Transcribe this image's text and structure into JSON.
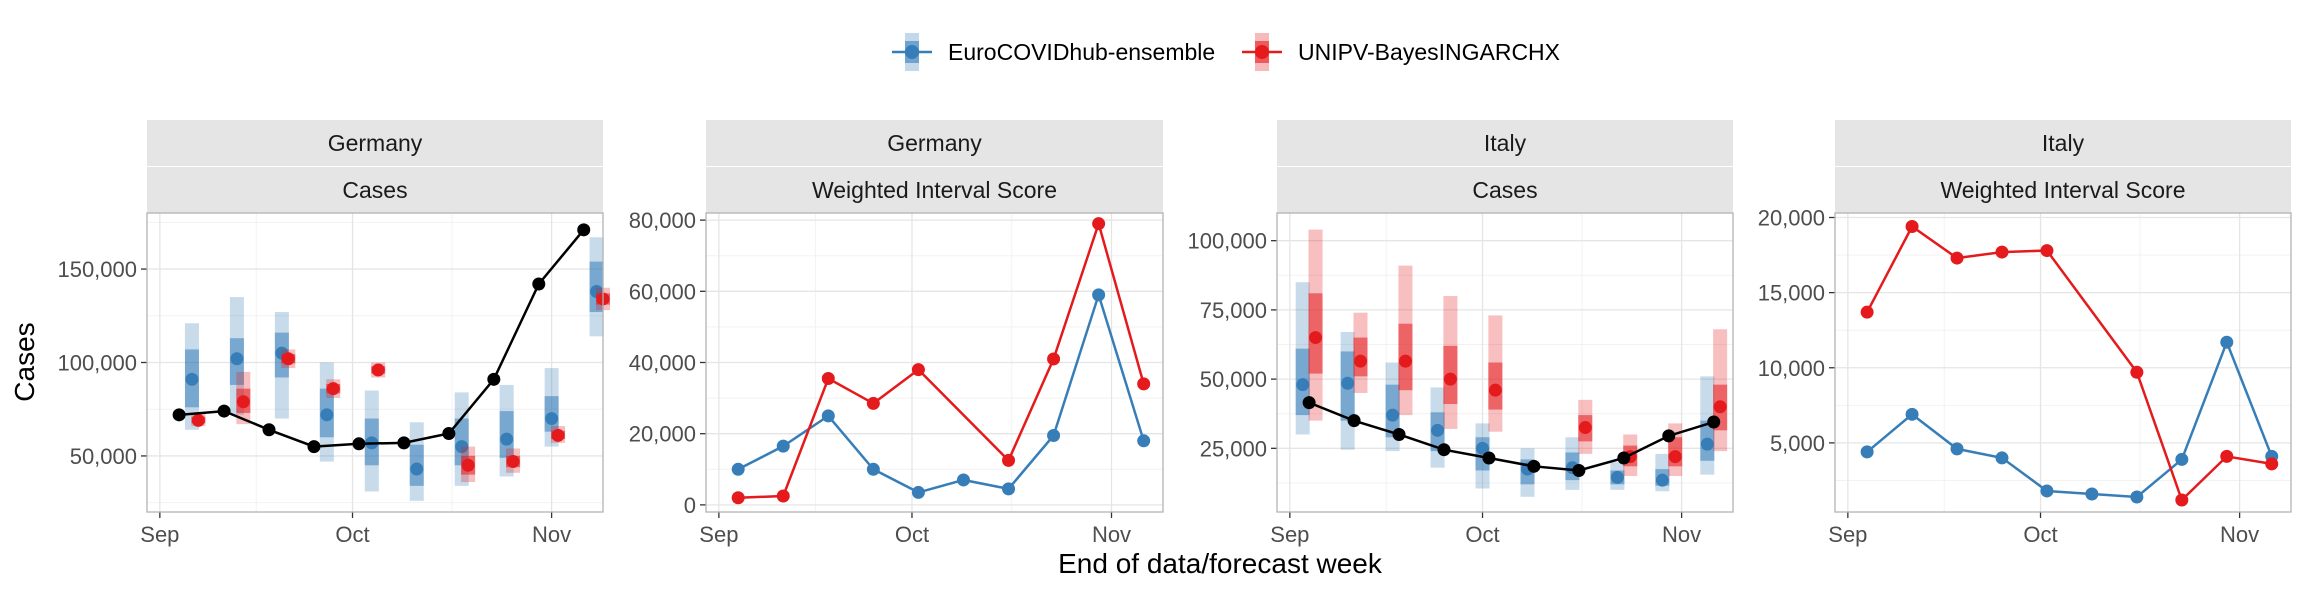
{
  "legend": {
    "position": "top",
    "entries": [
      {
        "label": "EuroCOVIDhub-ensemble",
        "color": "#377EB8"
      },
      {
        "label": "UNIPV-BayesINGARCHX",
        "color": "#E41A1C"
      }
    ]
  },
  "x_axis_title": "End of data/forecast week",
  "y_axis_title": "Cases",
  "observed_color": "#000000",
  "chart_data": [
    {
      "type": "line",
      "strip_top": "Germany",
      "strip_bottom": "Cases",
      "xlabel": "End of data/forecast week",
      "ylabel": "Cases",
      "grid": true,
      "x_ticks": [
        {
          "label": "Sep",
          "x": "2021-09-01"
        },
        {
          "label": "Oct",
          "x": "2021-10-01"
        },
        {
          "label": "Nov",
          "x": "2021-11-01"
        }
      ],
      "xlim": [
        "2021-08-30",
        "2021-11-09"
      ],
      "ylim": [
        20000,
        180000
      ],
      "y_ticks": [
        {
          "value": 50000,
          "label": "50,000"
        },
        {
          "value": 100000,
          "label": "100,000"
        },
        {
          "value": 150000,
          "label": "150,000"
        }
      ],
      "observed": {
        "x": [
          "2021-09-04",
          "2021-09-11",
          "2021-09-18",
          "2021-09-25",
          "2021-10-02",
          "2021-10-09",
          "2021-10-16",
          "2021-10-23",
          "2021-10-30",
          "2021-11-06"
        ],
        "values": [
          72000,
          74000,
          64000,
          55000,
          56500,
          57000,
          62000,
          91000,
          142000,
          171000
        ]
      },
      "forecasts": [
        {
          "model": "EuroCOVIDhub-ensemble",
          "x": [
            "2021-09-06",
            "2021-09-13",
            "2021-09-20",
            "2021-09-27",
            "2021-10-04",
            "2021-10-11",
            "2021-10-18",
            "2021-10-25",
            "2021-11-01",
            "2021-11-08"
          ],
          "median": [
            91000,
            102000,
            105000,
            72000,
            57000,
            43000,
            55000,
            59000,
            70000,
            138000
          ],
          "lower_90": [
            64000,
            72000,
            70000,
            47000,
            31000,
            26000,
            34000,
            39000,
            55000,
            114000
          ],
          "upper_90": [
            121000,
            135000,
            127000,
            100000,
            85000,
            68000,
            84000,
            88000,
            97000,
            167000
          ],
          "lower_50": [
            76000,
            88000,
            92000,
            60000,
            45000,
            34000,
            45000,
            49000,
            63000,
            127000
          ],
          "upper_50": [
            107000,
            113000,
            116000,
            86000,
            70000,
            56000,
            70000,
            74000,
            82000,
            154000
          ]
        },
        {
          "model": "UNIPV-BayesINGARCHX",
          "x": [
            "2021-09-07",
            "2021-09-14",
            "2021-09-21",
            "2021-09-28",
            "2021-10-05",
            "2021-10-12",
            "2021-10-19",
            "2021-10-26",
            "2021-11-02",
            "2021-11-09"
          ],
          "median": [
            69000,
            79000,
            102000,
            86000,
            96000,
            null,
            45000,
            47000,
            61000,
            134000
          ],
          "lower_90": [
            66000,
            67000,
            97000,
            81000,
            92000,
            null,
            36000,
            41000,
            57000,
            128000
          ],
          "upper_90": [
            73000,
            95000,
            107000,
            91000,
            100000,
            null,
            55000,
            54000,
            66000,
            140000
          ],
          "lower_50": [
            67500,
            73000,
            99500,
            83500,
            94000,
            null,
            40000,
            44000,
            59000,
            131000
          ],
          "upper_50": [
            71000,
            86000,
            104500,
            88500,
            98000,
            null,
            50000,
            50000,
            63500,
            137000
          ]
        }
      ]
    },
    {
      "type": "line",
      "strip_top": "Germany",
      "strip_bottom": "Weighted Interval Score",
      "xlabel": "End of data/forecast week",
      "ylabel": "",
      "grid": true,
      "x_ticks": [
        {
          "label": "Sep",
          "x": "2021-09-01"
        },
        {
          "label": "Oct",
          "x": "2021-10-01"
        },
        {
          "label": "Nov",
          "x": "2021-11-01"
        }
      ],
      "xlim": [
        "2021-08-30",
        "2021-11-09"
      ],
      "ylim": [
        -2000,
        82000
      ],
      "y_ticks": [
        {
          "value": 0,
          "label": "0"
        },
        {
          "value": 20000,
          "label": "20,000"
        },
        {
          "value": 40000,
          "label": "40,000"
        },
        {
          "value": 60000,
          "label": "60,000"
        },
        {
          "value": 80000,
          "label": "80,000"
        }
      ],
      "series": [
        {
          "name": "EuroCOVIDhub-ensemble",
          "x": [
            "2021-09-04",
            "2021-09-11",
            "2021-09-18",
            "2021-09-25",
            "2021-10-02",
            "2021-10-09",
            "2021-10-16",
            "2021-10-23",
            "2021-10-30",
            "2021-11-06"
          ],
          "values": [
            10000,
            16500,
            25000,
            10000,
            3500,
            7000,
            4500,
            19500,
            59000,
            18000
          ]
        },
        {
          "name": "UNIPV-BayesINGARCHX",
          "x": [
            "2021-09-04",
            "2021-09-11",
            "2021-09-18",
            "2021-09-25",
            "2021-10-02",
            "2021-10-16",
            "2021-10-23",
            "2021-10-30",
            "2021-11-06"
          ],
          "values": [
            2000,
            2500,
            35500,
            28500,
            38000,
            12500,
            41000,
            79000,
            34000
          ]
        }
      ]
    },
    {
      "type": "line",
      "strip_top": "Italy",
      "strip_bottom": "Cases",
      "xlabel": "End of data/forecast week",
      "ylabel": "",
      "grid": true,
      "x_ticks": [
        {
          "label": "Sep",
          "x": "2021-09-01"
        },
        {
          "label": "Oct",
          "x": "2021-10-01"
        },
        {
          "label": "Nov",
          "x": "2021-11-01"
        }
      ],
      "xlim": [
        "2021-08-30",
        "2021-11-09"
      ],
      "ylim": [
        2000,
        110000
      ],
      "y_ticks": [
        {
          "value": 25000,
          "label": "25,000"
        },
        {
          "value": 50000,
          "label": "50,000"
        },
        {
          "value": 75000,
          "label": "75,000"
        },
        {
          "value": 100000,
          "label": "100,000"
        }
      ],
      "observed": {
        "x": [
          "2021-09-04",
          "2021-09-11",
          "2021-09-18",
          "2021-09-25",
          "2021-10-02",
          "2021-10-09",
          "2021-10-16",
          "2021-10-23",
          "2021-10-30",
          "2021-11-06"
        ],
        "values": [
          41500,
          35000,
          30000,
          24500,
          21500,
          18500,
          17000,
          21500,
          29500,
          34500
        ]
      },
      "forecasts": [
        {
          "model": "EuroCOVIDhub-ensemble",
          "x": [
            "2021-09-03",
            "2021-09-10",
            "2021-09-17",
            "2021-09-24",
            "2021-10-01",
            "2021-10-08",
            "2021-10-15",
            "2021-10-22",
            "2021-10-29",
            "2021-11-05"
          ],
          "median": [
            48000,
            48500,
            37000,
            31500,
            25000,
            17500,
            18000,
            14500,
            13500,
            26500
          ],
          "lower_90": [
            30000,
            24500,
            24000,
            18000,
            10500,
            7500,
            10000,
            10000,
            9500,
            15500
          ],
          "upper_90": [
            85000,
            67000,
            56000,
            47000,
            34000,
            25000,
            29000,
            20000,
            23000,
            51000
          ],
          "lower_50": [
            37000,
            35000,
            29000,
            24000,
            17000,
            12000,
            13500,
            12000,
            11500,
            20500
          ],
          "upper_50": [
            61000,
            60000,
            48000,
            38000,
            29000,
            21000,
            23500,
            17000,
            17500,
            35000
          ]
        },
        {
          "model": "UNIPV-BayesINGARCHX",
          "x": [
            "2021-09-05",
            "2021-09-12",
            "2021-09-19",
            "2021-09-26",
            "2021-10-03",
            "2021-10-10",
            "2021-10-17",
            "2021-10-24",
            "2021-10-31",
            "2021-11-07"
          ],
          "median": [
            65000,
            56500,
            56500,
            50000,
            46000,
            null,
            32500,
            22000,
            22000,
            40000
          ],
          "lower_90": [
            35000,
            45000,
            37000,
            32000,
            31000,
            null,
            23000,
            15000,
            15000,
            24000
          ],
          "upper_90": [
            104000,
            74000,
            91000,
            80000,
            73000,
            null,
            42500,
            30000,
            34000,
            68000
          ],
          "lower_50": [
            52000,
            51000,
            46000,
            41000,
            39000,
            null,
            27500,
            18500,
            18500,
            31500
          ],
          "upper_50": [
            81000,
            65000,
            70000,
            62000,
            56000,
            null,
            37000,
            26000,
            29000,
            48000
          ]
        }
      ]
    },
    {
      "type": "line",
      "strip_top": "Italy",
      "strip_bottom": "Weighted Interval Score",
      "xlabel": "End of data/forecast week",
      "ylabel": "",
      "grid": true,
      "x_ticks": [
        {
          "label": "Sep",
          "x": "2021-09-01"
        },
        {
          "label": "Oct",
          "x": "2021-10-01"
        },
        {
          "label": "Nov",
          "x": "2021-11-01"
        }
      ],
      "xlim": [
        "2021-08-30",
        "2021-11-09"
      ],
      "ylim": [
        400,
        20300
      ],
      "y_ticks": [
        {
          "value": 5000,
          "label": "5,000"
        },
        {
          "value": 10000,
          "label": "10,000"
        },
        {
          "value": 15000,
          "label": "15,000"
        },
        {
          "value": 20000,
          "label": "20,000"
        }
      ],
      "series": [
        {
          "name": "EuroCOVIDhub-ensemble",
          "x": [
            "2021-09-04",
            "2021-09-11",
            "2021-09-18",
            "2021-09-25",
            "2021-10-02",
            "2021-10-09",
            "2021-10-16",
            "2021-10-23",
            "2021-10-30",
            "2021-11-06"
          ],
          "values": [
            4400,
            6900,
            4600,
            4000,
            1800,
            1600,
            1400,
            3900,
            11700,
            4100
          ]
        },
        {
          "name": "UNIPV-BayesINGARCHX",
          "x": [
            "2021-09-04",
            "2021-09-11",
            "2021-09-18",
            "2021-09-25",
            "2021-10-02",
            "2021-10-16",
            "2021-10-23",
            "2021-10-30",
            "2021-11-06"
          ],
          "values": [
            13700,
            19400,
            17300,
            17700,
            17800,
            9700,
            1200,
            4100,
            3600
          ]
        }
      ]
    }
  ]
}
